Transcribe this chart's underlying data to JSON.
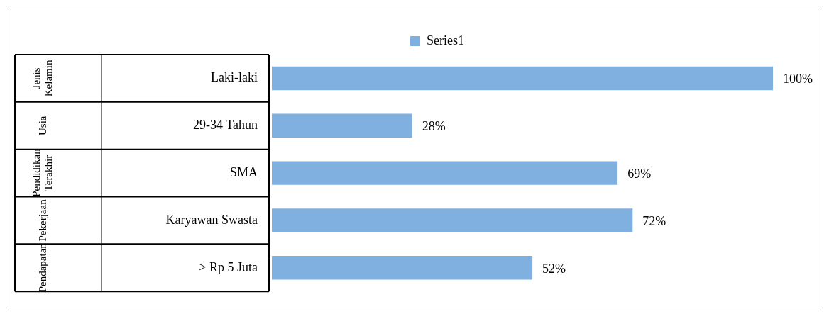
{
  "chart_data": {
    "type": "bar",
    "orientation": "horizontal",
    "legend": "top",
    "categories": [
      "Laki-laki",
      "29-34 Tahun",
      "SMA",
      "Karyawan Swasta",
      "> Rp 5 Juta"
    ],
    "series": [
      {
        "name": "Series1",
        "color": "#7fb0e0",
        "values": [
          100,
          28,
          69,
          72,
          52
        ],
        "value_labels": [
          "100%",
          "28%",
          "69%",
          "72%",
          "52%"
        ]
      }
    ],
    "annotations": [
      "Jenis Kelamin",
      "Usia",
      "Pendidikan Terakhir",
      "Pekerjaan",
      "Pendapatan"
    ]
  }
}
